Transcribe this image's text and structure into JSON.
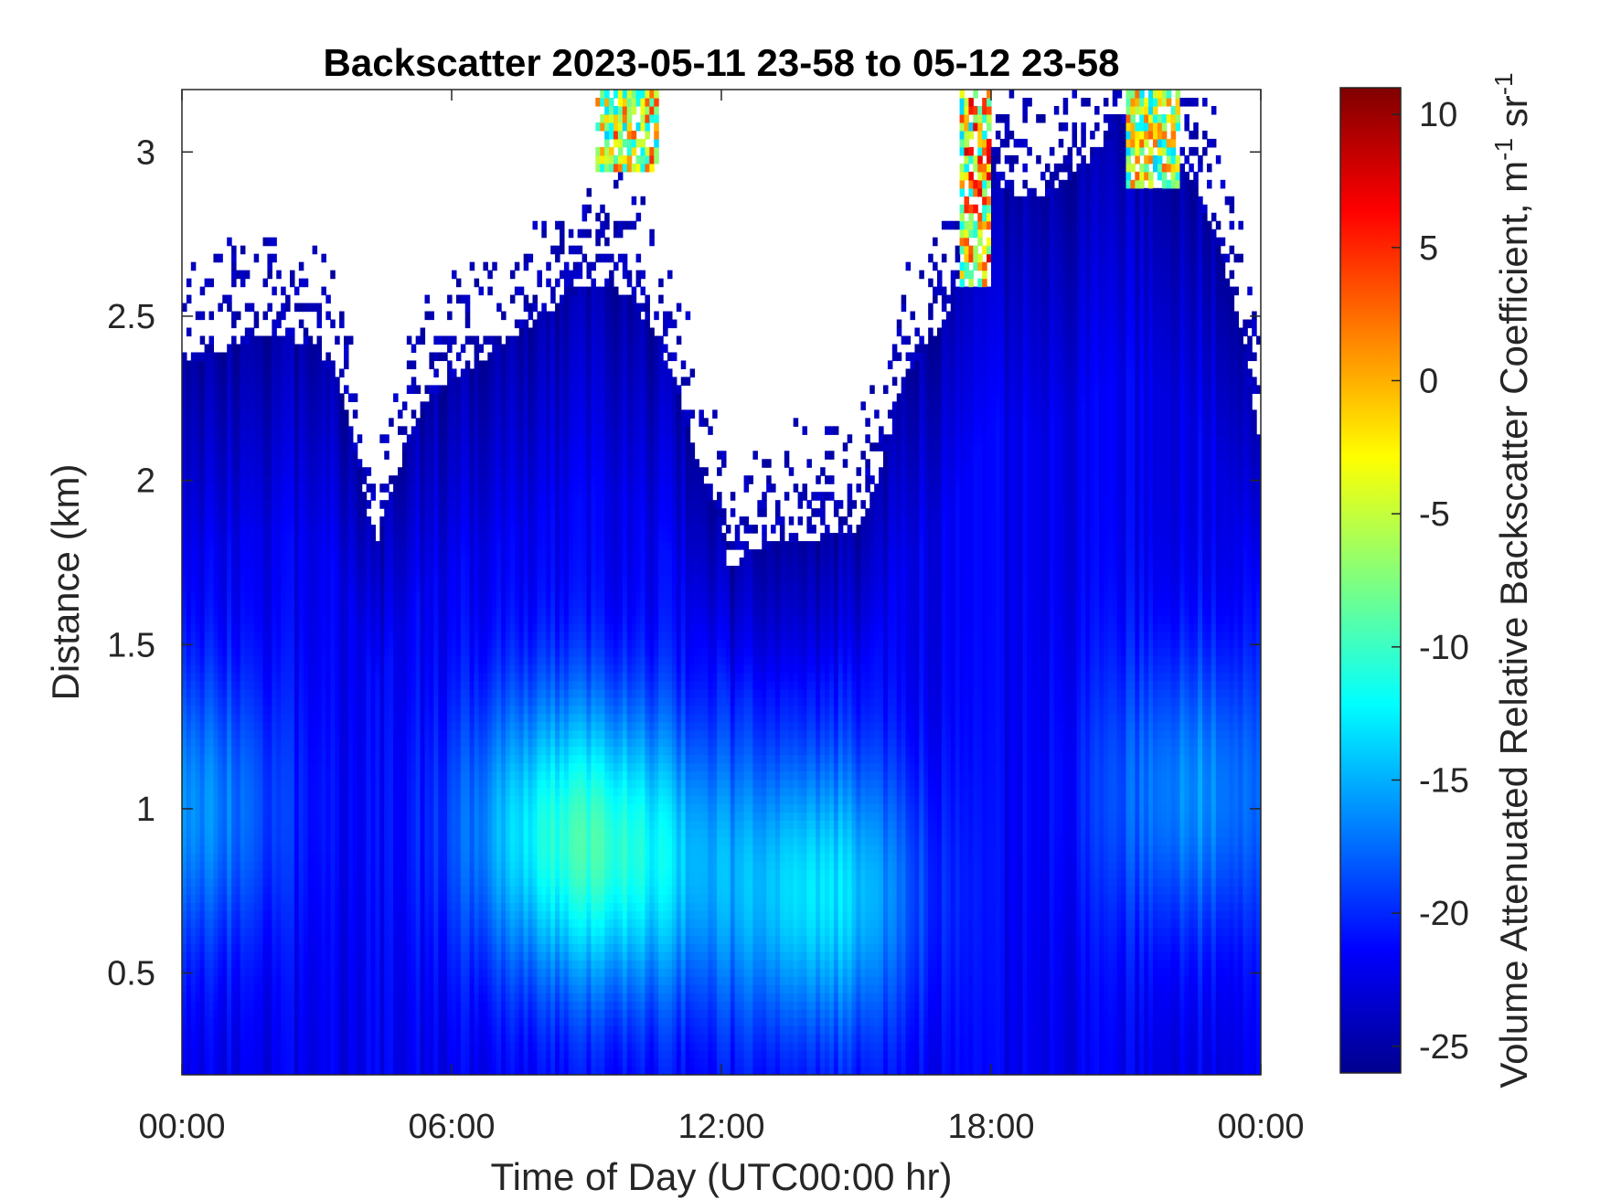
{
  "chart_data": {
    "type": "heatmap",
    "title": "Backscatter 2023-05-11 23-58 to 05-12 23-58",
    "xlabel": "Time of Day (UTC00:00 hr)",
    "ylabel": "Distance (km)",
    "xlim": [
      0,
      24
    ],
    "ylim": [
      0.19,
      3.19
    ],
    "x_tick_values": [
      0,
      6,
      12,
      18,
      24
    ],
    "x_tick_labels": [
      "00:00",
      "06:00",
      "12:00",
      "18:00",
      "00:00"
    ],
    "y_tick_values": [
      0.5,
      1,
      1.5,
      2,
      2.5,
      3
    ],
    "y_tick_labels": [
      "0.5",
      "1",
      "1.5",
      "2",
      "2.5",
      "3"
    ],
    "colorbar": {
      "label": "Volume Attenuated Relative Backscatter Coefficient, m",
      "label_sup1": "-1",
      "label_mid": " sr",
      "label_sup2": "-1",
      "colormap": "jet",
      "clim": [
        -26,
        11
      ],
      "tick_values": [
        10,
        5,
        0,
        -5,
        -10,
        -15,
        -20,
        -25
      ],
      "tick_labels": [
        "10",
        "5",
        "0",
        "-5",
        "-10",
        "-15",
        "-20",
        "-25"
      ]
    },
    "signal_top_km": [
      [
        0,
        2.35
      ],
      [
        1,
        2.4
      ],
      [
        2,
        2.45
      ],
      [
        3,
        2.4
      ],
      [
        3.5,
        2.3
      ],
      [
        4,
        2.0
      ],
      [
        4.3,
        1.8
      ],
      [
        4.6,
        1.95
      ],
      [
        5,
        2.1
      ],
      [
        5.5,
        2.25
      ],
      [
        6,
        2.3
      ],
      [
        7,
        2.4
      ],
      [
        8,
        2.5
      ],
      [
        8.5,
        2.55
      ],
      [
        9,
        2.6
      ],
      [
        9.5,
        2.6
      ],
      [
        10,
        2.55
      ],
      [
        10.5,
        2.45
      ],
      [
        11,
        2.3
      ],
      [
        11.5,
        2.05
      ],
      [
        12,
        1.85
      ],
      [
        12.2,
        1.72
      ],
      [
        12.5,
        1.78
      ],
      [
        13,
        1.8
      ],
      [
        14,
        1.82
      ],
      [
        15,
        1.85
      ],
      [
        15.5,
        2.0
      ],
      [
        16,
        2.3
      ],
      [
        17,
        2.5
      ],
      [
        17.5,
        2.7
      ],
      [
        18,
        2.9
      ],
      [
        19,
        2.85
      ],
      [
        20,
        2.95
      ],
      [
        21,
        3.1
      ],
      [
        22,
        3.0
      ],
      [
        22.5,
        2.9
      ],
      [
        23,
        2.75
      ],
      [
        23.5,
        2.5
      ],
      [
        24,
        2.1
      ]
    ],
    "high_backscatter_regions": [
      {
        "time_hr": [
          9.2,
          10.6
        ],
        "distance_km": [
          2.95,
          3.19
        ],
        "peak_value": 6
      },
      {
        "time_hr": [
          17.3,
          18.0
        ],
        "distance_km": [
          2.6,
          3.19
        ],
        "peak_value": 8
      },
      {
        "time_hr": [
          21.0,
          22.2
        ],
        "distance_km": [
          2.9,
          3.19
        ],
        "peak_value": 3
      }
    ],
    "enhanced_aerosol_layers": [
      {
        "time_hr": 0.2,
        "distance_km": 1.0,
        "value": -16
      },
      {
        "time_hr": 8.0,
        "distance_km": 0.95,
        "value": -15
      },
      {
        "time_hr": 10.0,
        "distance_km": 0.85,
        "value": -14
      },
      {
        "time_hr": 14.2,
        "distance_km": 0.75,
        "value": -13
      },
      {
        "time_hr": 22.5,
        "distance_km": 1.05,
        "value": -16
      }
    ],
    "background_value": -22,
    "grid": false
  }
}
